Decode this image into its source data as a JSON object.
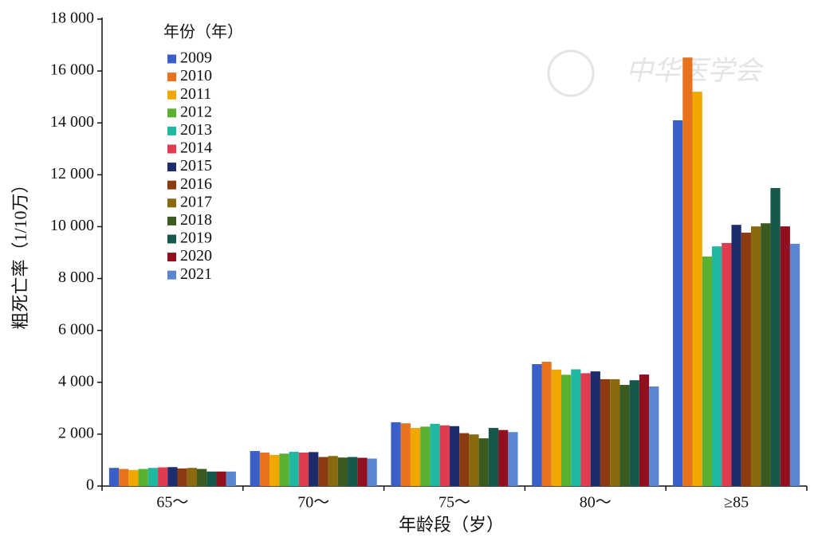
{
  "chart_data": {
    "type": "bar",
    "watermark": "中华医学会",
    "legend_title": "年份（年）",
    "x_label": "年龄段（岁）",
    "y_label": "粗死亡率（1/10万）",
    "categories": [
      "65～",
      "70～",
      "75～",
      "80～",
      "≥85"
    ],
    "series": [
      {
        "name": "2009",
        "color": "#3a5fc8",
        "values": [
          700,
          1350,
          2460,
          4700,
          14100
        ]
      },
      {
        "name": "2010",
        "color": "#e8731f",
        "values": [
          660,
          1290,
          2420,
          4790,
          16520
        ]
      },
      {
        "name": "2011",
        "color": "#f0a800",
        "values": [
          620,
          1200,
          2240,
          4490,
          15200
        ]
      },
      {
        "name": "2012",
        "color": "#5ab030",
        "values": [
          660,
          1250,
          2290,
          4290,
          8850
        ]
      },
      {
        "name": "2013",
        "color": "#20b8a0",
        "values": [
          700,
          1320,
          2400,
          4500,
          9240
        ]
      },
      {
        "name": "2014",
        "color": "#e03c50",
        "values": [
          720,
          1290,
          2340,
          4350,
          9370
        ]
      },
      {
        "name": "2015",
        "color": "#1c2c6c",
        "values": [
          730,
          1310,
          2310,
          4420,
          10070
        ]
      },
      {
        "name": "2016",
        "color": "#8c3a10",
        "values": [
          680,
          1120,
          2040,
          4120,
          9770
        ]
      },
      {
        "name": "2017",
        "color": "#8a6a10",
        "values": [
          700,
          1160,
          1990,
          4120,
          10010
        ]
      },
      {
        "name": "2018",
        "color": "#3a5a20",
        "values": [
          660,
          1100,
          1840,
          3900,
          10130
        ]
      },
      {
        "name": "2019",
        "color": "#16584c",
        "values": [
          560,
          1120,
          2240,
          4080,
          11490
        ]
      },
      {
        "name": "2020",
        "color": "#901020",
        "values": [
          560,
          1090,
          2160,
          4300,
          10010
        ]
      },
      {
        "name": "2021",
        "color": "#5a86d0",
        "values": [
          560,
          1060,
          2080,
          3840,
          9340
        ]
      }
    ],
    "ylim": [
      0,
      18000
    ],
    "yticks": [
      0,
      {
        "value": 2000,
        "label": "2 000"
      },
      {
        "value": 4000,
        "label": "4 000"
      },
      {
        "value": 6000,
        "label": "6 000"
      },
      {
        "value": 8000,
        "label": "8 000"
      },
      {
        "value": 10000,
        "label": "10 000"
      },
      {
        "value": 12000,
        "label": "12 000"
      },
      {
        "value": 14000,
        "label": "14 000"
      },
      {
        "value": 16000,
        "label": "16 000"
      },
      {
        "value": 18000,
        "label": "18 000"
      }
    ],
    "grid": false
  }
}
